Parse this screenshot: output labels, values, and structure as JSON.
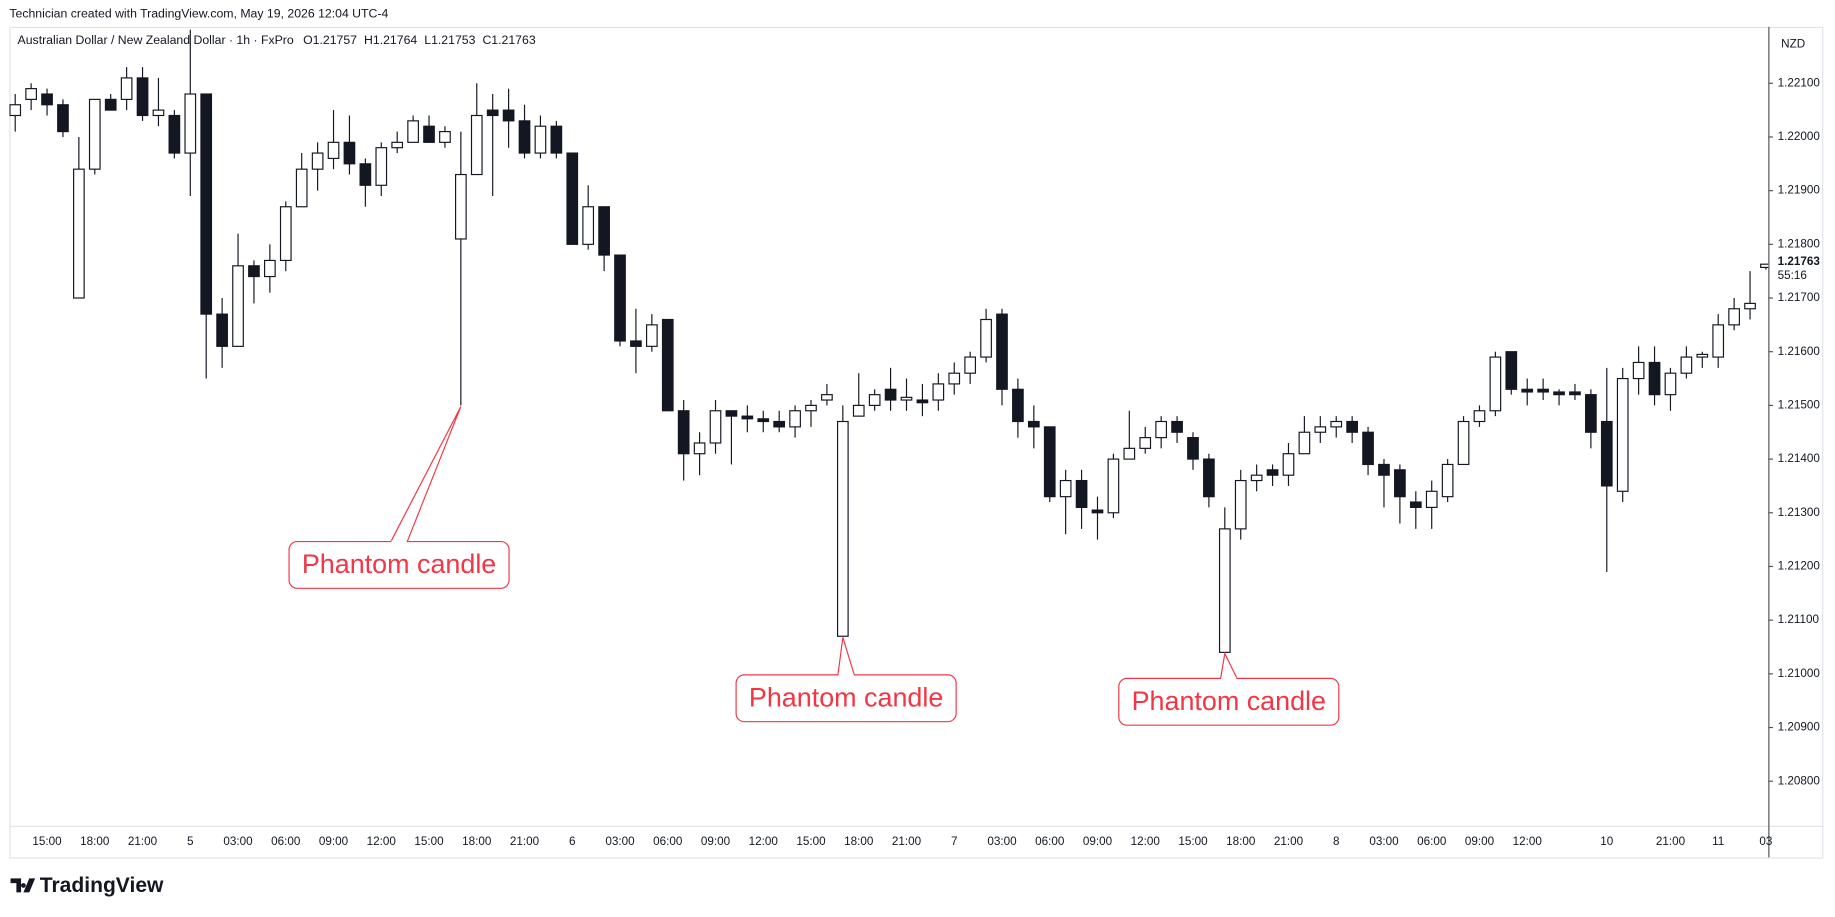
{
  "credit": "Technician created with TradingView.com, May 19, 2026 12:04 UTC-4",
  "brand": "TradingView",
  "chart_data": {
    "type": "candlestick",
    "symbol": "Australian Dollar / New Zealand Dollar · 1h · FxPro",
    "ohlc_labels": [
      "O",
      "H",
      "L",
      "C"
    ],
    "currency": "NZD",
    "countdown": "55:16",
    "up_color": "#ffffff",
    "down_color": "#131722",
    "border_color": "#131722",
    "grid": false,
    "annotations": [
      "Phantom candle",
      "Phantom candle",
      "Phantom candle"
    ],
    "annotation_color": "#f23645",
    "categories": [
      null,
      null,
      "15:00",
      null,
      null,
      "18:00",
      null,
      null,
      "21:00",
      null,
      null,
      "5",
      null,
      null,
      "03:00",
      null,
      null,
      "06:00",
      null,
      null,
      "09:00",
      null,
      null,
      "12:00",
      null,
      null,
      "15:00",
      null,
      null,
      "18:00",
      null,
      null,
      "21:00",
      null,
      null,
      "6",
      null,
      null,
      "03:00",
      null,
      null,
      "06:00",
      null,
      null,
      "09:00",
      null,
      null,
      "12:00",
      null,
      null,
      "15:00",
      null,
      null,
      "18:00",
      null,
      null,
      "21:00",
      null,
      null,
      "7",
      null,
      null,
      "03:00",
      null,
      null,
      "06:00",
      null,
      null,
      "09:00",
      null,
      null,
      "12:00",
      null,
      null,
      "15:00",
      null,
      null,
      "18:00",
      null,
      null,
      "21:00",
      null,
      null,
      "8",
      null,
      null,
      "03:00",
      null,
      null,
      "06:00",
      null,
      null,
      "09:00",
      null,
      null,
      "12:00",
      null,
      null,
      null,
      null,
      "10",
      null,
      null,
      null,
      "21:00",
      null,
      null,
      "11",
      null,
      null,
      "03"
    ],
    "open": [
      1.2204,
      1.2207,
      1.2208,
      1.2206,
      1.217,
      1.2194,
      1.2207,
      1.2207,
      1.2211,
      1.2204,
      1.2204,
      1.2197,
      1.2208,
      1.2167,
      1.2161,
      1.2176,
      1.2174,
      1.2177,
      1.2187,
      1.2194,
      1.2196,
      1.2199,
      1.2195,
      1.2191,
      1.2198,
      1.2199,
      1.2202,
      1.2199,
      1.2181,
      1.2193,
      1.2205,
      1.2205,
      1.2203,
      1.2197,
      1.2202,
      1.2197,
      1.218,
      1.2187,
      1.2178,
      1.2162,
      1.2161,
      1.2166,
      1.2149,
      1.2141,
      1.2143,
      1.2149,
      1.2148,
      1.21475,
      1.2147,
      1.2146,
      1.2149,
      1.2151,
      1.2107,
      1.2148,
      1.215,
      1.2153,
      1.2151,
      1.2151,
      1.2151,
      1.2154,
      1.2156,
      1.2159,
      1.2167,
      1.2153,
      1.2147,
      1.2146,
      1.2133,
      1.2136,
      1.21305,
      1.213,
      1.214,
      1.2142,
      1.2144,
      1.2147,
      1.2144,
      1.214,
      1.2104,
      1.2127,
      1.2136,
      1.2138,
      1.2137,
      1.2141,
      1.2145,
      1.2146,
      1.2147,
      1.2145,
      1.2139,
      1.2138,
      1.2132,
      1.2131,
      1.2133,
      1.2139,
      1.2147,
      1.2149,
      1.216,
      1.2153,
      1.2153,
      1.21525,
      1.21525,
      1.2152,
      1.2147,
      1.2134,
      1.2155,
      1.2158,
      1.2152,
      1.2156,
      1.2159,
      1.2159,
      1.2165,
      1.2168,
      1.21757
    ],
    "high": [
      1.2208,
      1.221,
      1.2209,
      1.2207,
      1.22,
      1.2207,
      1.2208,
      1.2213,
      1.2213,
      1.2211,
      1.2205,
      1.222,
      1.2208,
      1.217,
      1.2182,
      1.2177,
      1.218,
      1.2188,
      1.2197,
      1.2199,
      1.2205,
      1.2204,
      1.2196,
      1.2199,
      1.2201,
      1.2204,
      1.2204,
      1.2202,
      1.2201,
      1.221,
      1.2208,
      1.2209,
      1.2206,
      1.2204,
      1.2203,
      1.2197,
      1.2191,
      1.2187,
      1.2178,
      1.2168,
      1.2167,
      1.2166,
      1.2151,
      1.2145,
      1.2151,
      1.2149,
      1.215,
      1.2149,
      1.2149,
      1.215,
      1.2151,
      1.2154,
      1.215,
      1.2156,
      1.2153,
      1.2157,
      1.2155,
      1.2154,
      1.2156,
      1.2158,
      1.216,
      1.2168,
      1.2168,
      1.2155,
      1.215,
      1.2146,
      1.2138,
      1.2138,
      1.2133,
      1.2141,
      1.2149,
      1.2146,
      1.2148,
      1.2148,
      1.2145,
      1.2141,
      1.2131,
      1.2138,
      1.2139,
      1.2139,
      1.2143,
      1.2148,
      1.2148,
      1.2148,
      1.2148,
      1.2146,
      1.214,
      1.2139,
      1.2134,
      1.2136,
      1.214,
      1.2148,
      1.215,
      1.216,
      1.216,
      1.2155,
      1.2155,
      1.2153,
      1.2154,
      1.2153,
      1.2157,
      1.2157,
      1.2161,
      1.2161,
      1.2157,
      1.2161,
      1.216,
      1.2167,
      1.217,
      1.2175,
      1.21764
    ],
    "low": [
      1.2201,
      1.2205,
      1.2204,
      1.22,
      1.217,
      1.2193,
      1.2205,
      1.2205,
      1.2203,
      1.2202,
      1.2196,
      1.2189,
      1.2155,
      1.2157,
      1.2161,
      1.2169,
      1.2171,
      1.2175,
      1.2187,
      1.219,
      1.2194,
      1.2193,
      1.2187,
      1.2189,
      1.2197,
      1.2199,
      1.2199,
      1.2198,
      1.215,
      1.2193,
      1.2189,
      1.2198,
      1.2196,
      1.2196,
      1.2196,
      1.218,
      1.2179,
      1.2175,
      1.2161,
      1.2156,
      1.216,
      1.2149,
      1.2136,
      1.2137,
      1.2141,
      1.2139,
      1.2145,
      1.2145,
      1.2145,
      1.2144,
      1.2146,
      1.215,
      1.2107,
      1.2148,
      1.2149,
      1.2149,
      1.2149,
      1.2148,
      1.2149,
      1.2152,
      1.2154,
      1.2158,
      1.215,
      1.2144,
      1.2142,
      1.2132,
      1.2126,
      1.2127,
      1.2125,
      1.2129,
      1.214,
      1.2141,
      1.2142,
      1.2143,
      1.2138,
      1.2131,
      1.2104,
      1.2125,
      1.2134,
      1.2135,
      1.2135,
      1.2141,
      1.2143,
      1.2144,
      1.2143,
      1.2137,
      1.2131,
      1.2128,
      1.2127,
      1.2127,
      1.2132,
      1.2139,
      1.2146,
      1.2148,
      1.2152,
      1.215,
      1.2151,
      1.215,
      1.2151,
      1.2142,
      1.2119,
      1.2132,
      1.2152,
      1.215,
      1.2149,
      1.2155,
      1.2157,
      1.2157,
      1.2164,
      1.2166,
      1.21753
    ],
    "close": [
      1.2206,
      1.2209,
      1.2206,
      1.2201,
      1.2194,
      1.2207,
      1.2205,
      1.2211,
      1.2204,
      1.2205,
      1.2197,
      1.2208,
      1.2167,
      1.2161,
      1.2176,
      1.2174,
      1.2177,
      1.2187,
      1.2194,
      1.2197,
      1.2199,
      1.2195,
      1.2191,
      1.2198,
      1.2199,
      1.2203,
      1.2199,
      1.2201,
      1.2193,
      1.2204,
      1.2204,
      1.2203,
      1.2197,
      1.2202,
      1.2197,
      1.218,
      1.2187,
      1.2178,
      1.2162,
      1.2161,
      1.2165,
      1.2149,
      1.2141,
      1.2143,
      1.2149,
      1.2148,
      1.21475,
      1.2147,
      1.2146,
      1.2149,
      1.215,
      1.2152,
      1.2147,
      1.215,
      1.2152,
      1.2151,
      1.21515,
      1.21505,
      1.2154,
      1.2156,
      1.2159,
      1.2166,
      1.2153,
      1.2147,
      1.2146,
      1.2133,
      1.2136,
      1.2131,
      1.213,
      1.214,
      1.2142,
      1.2144,
      1.2147,
      1.2145,
      1.214,
      1.2133,
      1.2127,
      1.2136,
      1.2137,
      1.2137,
      1.2141,
      1.2145,
      1.2146,
      1.2147,
      1.2145,
      1.2139,
      1.2137,
      1.2133,
      1.2131,
      1.2134,
      1.2139,
      1.2147,
      1.2149,
      1.2159,
      1.2153,
      1.21525,
      1.21525,
      1.2152,
      1.2152,
      1.2145,
      1.2135,
      1.2155,
      1.2158,
      1.2152,
      1.2156,
      1.2159,
      1.21595,
      1.2165,
      1.2168,
      1.2169,
      1.21763
    ],
    "ylim": [
      1.20717,
      1.22205
    ],
    "yticks": [
      {
        "value": 1.208,
        "label": "1.20800"
      },
      {
        "value": 1.209,
        "label": "1.20900"
      },
      {
        "value": 1.21,
        "label": "1.21000"
      },
      {
        "value": 1.211,
        "label": "1.21100"
      },
      {
        "value": 1.212,
        "label": "1.21200"
      },
      {
        "value": 1.213,
        "label": "1.21300"
      },
      {
        "value": 1.214,
        "label": "1.21400"
      },
      {
        "value": 1.215,
        "label": "1.21500"
      },
      {
        "value": 1.216,
        "label": "1.21600"
      },
      {
        "value": 1.217,
        "label": "1.21700"
      },
      {
        "value": 1.218,
        "label": "1.21800"
      },
      {
        "value": 1.219,
        "label": "1.21900"
      },
      {
        "value": 1.22,
        "label": "1.22000"
      },
      {
        "value": 1.221,
        "label": "1.22100"
      }
    ]
  }
}
